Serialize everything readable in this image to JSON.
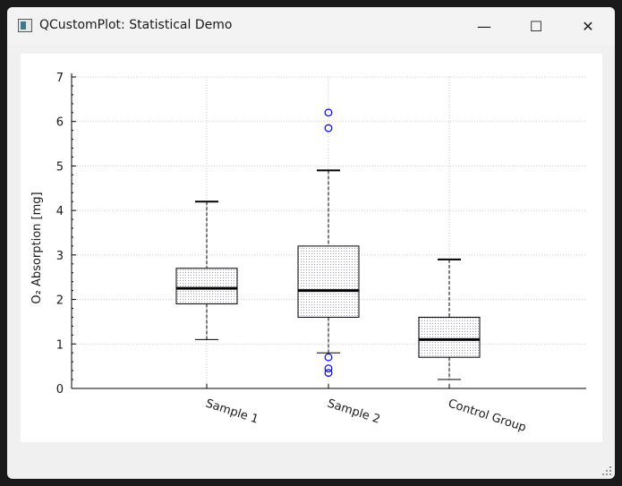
{
  "window": {
    "title": "QCustomPlot: Statistical Demo",
    "controls": {
      "minimize": "—",
      "maximize": "☐",
      "close": "✕"
    }
  },
  "colors": {
    "outlier": "#0000ff",
    "box_fill_hatch": "#9a9ab0",
    "median": "#000000",
    "grid": "#c8c8c8"
  },
  "chart_data": {
    "type": "boxplot",
    "title": "",
    "xlabel": "",
    "ylabel": "O₂ Absorption [mg]",
    "ylim": [
      0,
      7
    ],
    "yticks": [
      "0",
      "1",
      "2",
      "3",
      "4",
      "5",
      "6",
      "7"
    ],
    "grid": true,
    "categories": [
      "Sample 1",
      "Sample 2",
      "Control Group"
    ],
    "boxes": [
      {
        "label": "Sample 1",
        "whisker_low": 1.1,
        "q1": 1.9,
        "median": 2.25,
        "q3": 2.7,
        "whisker_high": 4.2,
        "outliers": []
      },
      {
        "label": "Sample 2",
        "whisker_low": 0.8,
        "q1": 1.6,
        "median": 2.2,
        "q3": 3.2,
        "whisker_high": 4.9,
        "outliers": [
          0.7,
          0.45,
          0.35,
          5.85,
          6.2
        ]
      },
      {
        "label": "Control Group",
        "whisker_low": 0.2,
        "q1": 0.7,
        "median": 1.1,
        "q3": 1.6,
        "whisker_high": 2.9,
        "outliers": []
      }
    ]
  }
}
